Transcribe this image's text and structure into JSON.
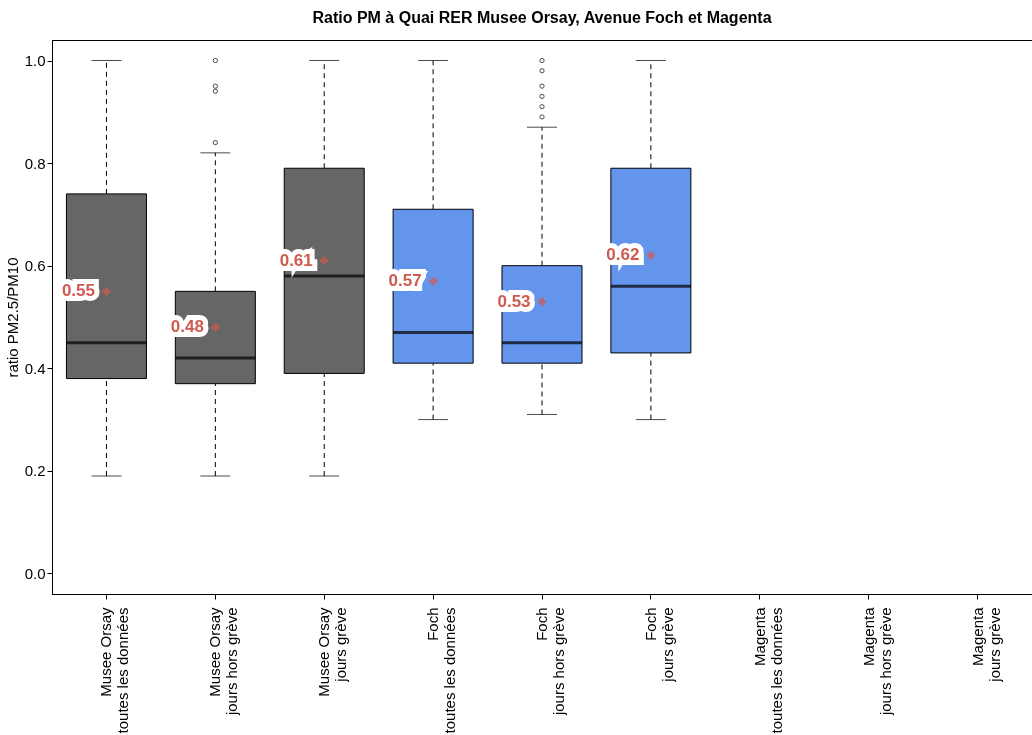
{
  "chart_data": {
    "type": "box",
    "title": "Ratio PM à Quai RER Musee Orsay, Avenue Foch et Magenta",
    "ylabel": "ratio PM2.5/PM10",
    "categories": [
      "Musee Orsay\ntoutes les données",
      "Musee Orsay\njours hors grève",
      "Musee Orsay\njours grève",
      "Foch\ntoutes les données",
      "Foch\njours hors grève",
      "Foch\njours grève",
      "Magenta\ntoutes les données",
      "Magenta\njours hors grève",
      "Magenta\njours grève"
    ],
    "boxes": [
      {
        "low": 0.19,
        "q1": 0.38,
        "median": 0.45,
        "q3": 0.74,
        "high": 1.0,
        "mean": 0.55
      },
      {
        "low": 0.19,
        "q1": 0.37,
        "median": 0.42,
        "q3": 0.55,
        "high": 0.82,
        "mean": 0.48,
        "outliers": [
          0.84,
          0.94,
          0.95,
          1.0
        ]
      },
      {
        "low": 0.19,
        "q1": 0.39,
        "median": 0.58,
        "q3": 0.79,
        "high": 1.0,
        "mean": 0.61
      },
      {
        "low": 0.3,
        "q1": 0.41,
        "median": 0.47,
        "q3": 0.71,
        "high": 1.0,
        "mean": 0.57
      },
      {
        "low": 0.31,
        "q1": 0.41,
        "median": 0.45,
        "q3": 0.6,
        "high": 0.87,
        "mean": 0.53,
        "outliers": [
          0.89,
          0.91,
          0.93,
          0.95,
          0.98,
          1.0
        ]
      },
      {
        "low": 0.3,
        "q1": 0.43,
        "median": 0.56,
        "q3": 0.79,
        "high": 1.0,
        "mean": 0.62
      },
      null,
      null,
      null
    ],
    "colors": [
      "#666666",
      "#666666",
      "#666666",
      "#6495ed",
      "#6495ed",
      "#6495ed",
      null,
      null,
      null
    ],
    "annotations": [
      "0.55",
      "0.48",
      "0.61",
      "0.57",
      "0.53",
      "0.62"
    ],
    "ylim": [
      -0.04,
      1.04
    ],
    "yticks": [
      {
        "value": 0,
        "label": "0.0"
      },
      0.2,
      0.4,
      0.6,
      0.8,
      {
        "value": 1,
        "label": "1.0"
      }
    ],
    "grid": false
  }
}
